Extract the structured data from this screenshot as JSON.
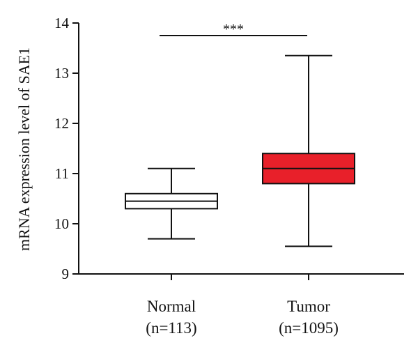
{
  "chart_data": {
    "type": "box",
    "title": "",
    "xlabel": "",
    "ylabel": "mRNA expression level of SAE1",
    "ylim": [
      9,
      14
    ],
    "yticks": [
      9,
      10,
      11,
      12,
      13,
      14
    ],
    "grid": false,
    "categories": [
      {
        "name": "Normal",
        "n_label": "(n=113)",
        "whisker_low": 9.7,
        "q1": 10.3,
        "median": 10.45,
        "q3": 10.6,
        "whisker_high": 11.1,
        "fill": "#ffffff"
      },
      {
        "name": "Tumor",
        "n_label": "(n=1095)",
        "whisker_low": 9.55,
        "q1": 10.8,
        "median": 11.1,
        "q3": 11.4,
        "whisker_high": 13.35,
        "fill": "#e8202a"
      }
    ],
    "significance": {
      "label": "***",
      "y": 13.75
    }
  }
}
